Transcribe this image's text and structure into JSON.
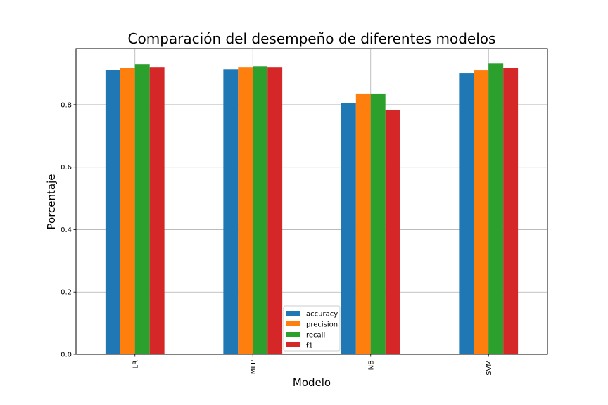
{
  "chart_data": {
    "type": "bar",
    "title": "Comparación del desempeño de diferentes modelos",
    "xlabel": "Modelo",
    "ylabel": "Porcentaje",
    "categories": [
      "LR",
      "MLP",
      "NB",
      "SVM"
    ],
    "ylim": [
      0,
      0.98
    ],
    "yticks": [
      "0.0",
      "0.2",
      "0.4",
      "0.6",
      "0.8"
    ],
    "grid": true,
    "legend_position": "lower-center",
    "series": [
      {
        "name": "accuracy",
        "color": "#1f77b4",
        "values": [
          0.912,
          0.914,
          0.806,
          0.901
        ]
      },
      {
        "name": "precision",
        "color": "#ff7f0e",
        "values": [
          0.917,
          0.921,
          0.836,
          0.91
        ]
      },
      {
        "name": "recall",
        "color": "#2ca02c",
        "values": [
          0.93,
          0.923,
          0.836,
          0.932
        ]
      },
      {
        "name": "f1",
        "color": "#d62728",
        "values": [
          0.921,
          0.921,
          0.784,
          0.917
        ]
      }
    ]
  }
}
